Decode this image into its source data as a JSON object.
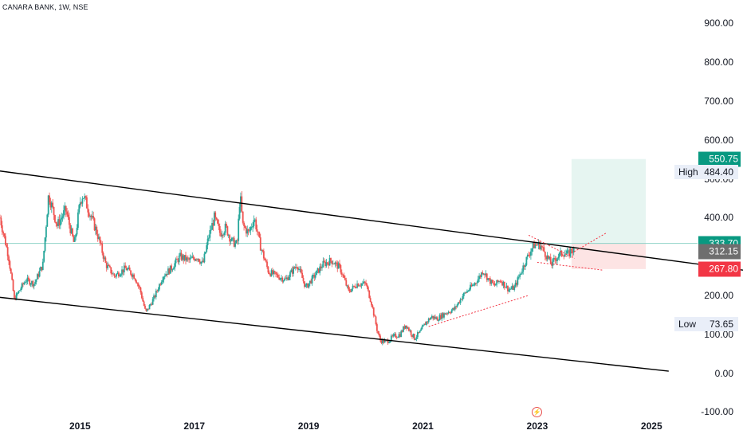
{
  "symbol_title": "CANARA BANK, 1W, NSE",
  "colors": {
    "up": "#26a69a",
    "down": "#ef5350",
    "channel": "#000000",
    "trend": "#f23645",
    "target_zone": "#e6f5f1",
    "stop_zone": "#fde4e4",
    "entry_line": "#8fd2c8",
    "entry_badge": "#089981",
    "stop_badge": "#f23645",
    "current_badge": "#6e6e6e"
  },
  "icons": {
    "event_flag": "lightning-flag-icon"
  },
  "chart_data": {
    "type": "candlestick",
    "title": "CANARA BANK, 1W, NSE",
    "xlabel": "",
    "ylabel": "",
    "ylim": [
      -130,
      960
    ],
    "xlim": [
      2013.6,
      2026.6
    ],
    "y_ticks": [
      "900.00",
      "800.00",
      "700.00",
      "600.00",
      "500.00",
      "400.00",
      "200.00",
      "100.00",
      "0.00",
      "-100.00"
    ],
    "y_tick_values": [
      900,
      800,
      700,
      600,
      500,
      400,
      200,
      100,
      0,
      -100
    ],
    "x_ticks": [
      "2015",
      "2017",
      "2019",
      "2021",
      "2023",
      "2025"
    ],
    "x_tick_values": [
      2015,
      2017,
      2019,
      2021,
      2023,
      2025
    ],
    "grid": false,
    "legend": "none",
    "price_path": [
      [
        2013.6,
        400
      ],
      [
        2013.75,
        300
      ],
      [
        2013.85,
        190
      ],
      [
        2014.05,
        240
      ],
      [
        2014.2,
        230
      ],
      [
        2014.35,
        280
      ],
      [
        2014.45,
        460
      ],
      [
        2014.6,
        380
      ],
      [
        2014.75,
        420
      ],
      [
        2014.9,
        330
      ],
      [
        2015.0,
        440
      ],
      [
        2015.05,
        460
      ],
      [
        2015.2,
        400
      ],
      [
        2015.3,
        360
      ],
      [
        2015.45,
        280
      ],
      [
        2015.6,
        250
      ],
      [
        2015.8,
        270
      ],
      [
        2015.95,
        250
      ],
      [
        2016.05,
        215
      ],
      [
        2016.15,
        155
      ],
      [
        2016.3,
        195
      ],
      [
        2016.45,
        250
      ],
      [
        2016.6,
        270
      ],
      [
        2016.75,
        300
      ],
      [
        2016.9,
        290
      ],
      [
        2017.05,
        300
      ],
      [
        2017.15,
        280
      ],
      [
        2017.25,
        350
      ],
      [
        2017.35,
        400
      ],
      [
        2017.45,
        360
      ],
      [
        2017.55,
        375
      ],
      [
        2017.65,
        340
      ],
      [
        2017.75,
        330
      ],
      [
        2017.8,
        460
      ],
      [
        2017.85,
        380
      ],
      [
        2017.95,
        360
      ],
      [
        2018.05,
        400
      ],
      [
        2018.15,
        330
      ],
      [
        2018.3,
        260
      ],
      [
        2018.45,
        250
      ],
      [
        2018.6,
        240
      ],
      [
        2018.8,
        280
      ],
      [
        2018.95,
        220
      ],
      [
        2019.1,
        250
      ],
      [
        2019.25,
        280
      ],
      [
        2019.4,
        290
      ],
      [
        2019.55,
        270
      ],
      [
        2019.7,
        210
      ],
      [
        2019.85,
        230
      ],
      [
        2020.0,
        230
      ],
      [
        2020.1,
        180
      ],
      [
        2020.2,
        110
      ],
      [
        2020.25,
        85
      ],
      [
        2020.35,
        80
      ],
      [
        2020.5,
        95
      ],
      [
        2020.6,
        100
      ],
      [
        2020.7,
        125
      ],
      [
        2020.85,
        90
      ],
      [
        2020.95,
        105
      ],
      [
        2021.05,
        130
      ],
      [
        2021.15,
        145
      ],
      [
        2021.25,
        140
      ],
      [
        2021.4,
        155
      ],
      [
        2021.55,
        165
      ],
      [
        2021.7,
        200
      ],
      [
        2021.8,
        215
      ],
      [
        2021.9,
        230
      ],
      [
        2022.0,
        250
      ],
      [
        2022.05,
        265
      ],
      [
        2022.15,
        240
      ],
      [
        2022.25,
        225
      ],
      [
        2022.35,
        240
      ],
      [
        2022.5,
        215
      ],
      [
        2022.6,
        220
      ],
      [
        2022.7,
        255
      ],
      [
        2022.8,
        290
      ],
      [
        2022.9,
        320
      ],
      [
        2022.95,
        330
      ],
      [
        2023.05,
        330
      ],
      [
        2023.15,
        305
      ],
      [
        2023.25,
        280
      ],
      [
        2023.35,
        300
      ],
      [
        2023.45,
        310
      ],
      [
        2023.55,
        305
      ],
      [
        2023.6,
        320
      ],
      [
        2023.65,
        312.15
      ]
    ],
    "channel_upper": [
      [
        2013.6,
        520
      ],
      [
        2026.6,
        265
      ]
    ],
    "channel_lower": [
      [
        2013.6,
        195
      ],
      [
        2025.3,
        5
      ]
    ],
    "dotted_trend_lines": [
      [
        [
          2021.1,
          120
        ],
        [
          2022.85,
          200
        ]
      ],
      [
        [
          2022.85,
          355
        ],
        [
          2023.65,
          295
        ]
      ],
      [
        [
          2023.0,
          285
        ],
        [
          2024.15,
          265
        ]
      ],
      [
        [
          2023.5,
          300
        ],
        [
          2024.2,
          360
        ]
      ]
    ],
    "position": {
      "x_start": 2023.6,
      "x_end": 2024.9,
      "entry": 333.7,
      "target": 550.75,
      "stop": 267.8,
      "current": 312.15
    },
    "price_labels": [
      {
        "value": "550.75",
        "kind": "target",
        "y": 550.75
      },
      {
        "value": "333.70",
        "kind": "entry",
        "y": 333.7
      },
      {
        "value": "312.15",
        "kind": "current",
        "y": 312.15
      },
      {
        "value": "267.80",
        "kind": "stop",
        "y": 267.8
      }
    ],
    "high": {
      "label": "High",
      "value": "484.40",
      "y": 484.4
    },
    "low": {
      "label": "Low",
      "value": "73.65",
      "y": 73.65
    }
  }
}
